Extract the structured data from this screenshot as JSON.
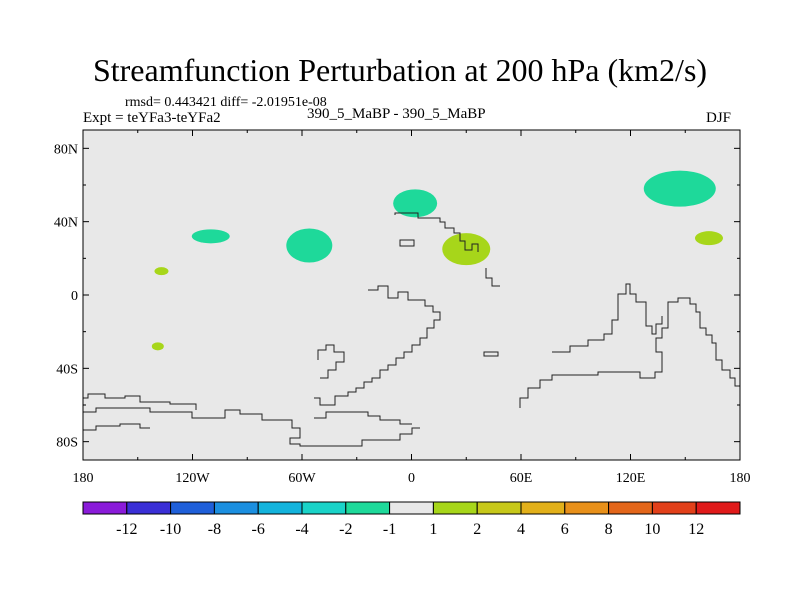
{
  "title": "Streamfunction Perturbation at 200 hPa (km2/s)",
  "subtitle_stats": "rmsd= 0.443421 diff= -2.01951e-08",
  "left_label": "Expt = teYFa3-teYFa2",
  "center_label": "390_5_MaBP - 390_5_MaBP",
  "right_label": "DJF",
  "chart_data": {
    "type": "heatmap",
    "title": "Streamfunction Perturbation at 200 hPa (km2/s)",
    "xlabel": "",
    "ylabel": "",
    "xlim": [
      -180,
      180
    ],
    "ylim": [
      -90,
      90
    ],
    "x_ticks": [
      {
        "value": -180,
        "label": "180"
      },
      {
        "value": -120,
        "label": "120W"
      },
      {
        "value": -60,
        "label": "60W"
      },
      {
        "value": 0,
        "label": "0"
      },
      {
        "value": 60,
        "label": "60E"
      },
      {
        "value": 120,
        "label": "120E"
      },
      {
        "value": 180,
        "label": "180"
      }
    ],
    "y_ticks": [
      {
        "value": 80,
        "label": "80N"
      },
      {
        "value": 40,
        "label": "40N"
      },
      {
        "value": 0,
        "label": "0"
      },
      {
        "value": -40,
        "label": "40S"
      },
      {
        "value": -80,
        "label": "80S"
      }
    ],
    "background_value_range": "-1 to 1",
    "colorbar": {
      "boundaries": [
        "-12",
        "-10",
        "-8",
        "-6",
        "-4",
        "-2",
        "-1",
        "1",
        "2",
        "4",
        "6",
        "8",
        "10",
        "12"
      ],
      "colors": [
        "#8a1bd9",
        "#3a2fd6",
        "#1f5fd9",
        "#1b8fe0",
        "#13b3dc",
        "#1ad3c8",
        "#1ed99a",
        "#e8e8e8",
        "#a7d61a",
        "#c7c81a",
        "#e2b01a",
        "#e8901a",
        "#e3661a",
        "#e2401a",
        "#e01a1a"
      ]
    },
    "anomalies": [
      {
        "lon": 2,
        "lat": 50,
        "value_range": "-2 to -1",
        "color": "#1ed99a"
      },
      {
        "lon": 147,
        "lat": 58,
        "value_range": "-2 to -1",
        "color": "#1ed99a"
      },
      {
        "lon": -56,
        "lat": 27,
        "value_range": "-2 to -1",
        "color": "#1ed99a"
      },
      {
        "lon": -110,
        "lat": 32,
        "value_range": "-2 to -1",
        "color": "#1ed99a"
      },
      {
        "lon": 30,
        "lat": 25,
        "value_range": "1 to 2",
        "color": "#a7d61a"
      },
      {
        "lon": 163,
        "lat": 31,
        "value_range": "1 to 2",
        "color": "#a7d61a"
      },
      {
        "lon": -137,
        "lat": 13,
        "value_range": "1 to 2",
        "color": "#a7d61a"
      },
      {
        "lon": -139,
        "lat": -28,
        "value_range": "1 to 2",
        "color": "#a7d61a"
      }
    ]
  }
}
